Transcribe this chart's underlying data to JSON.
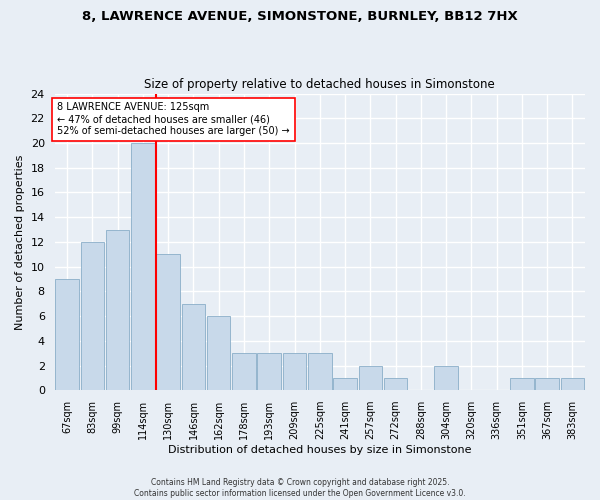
{
  "title_line1": "8, LAWRENCE AVENUE, SIMONSTONE, BURNLEY, BB12 7HX",
  "title_line2": "Size of property relative to detached houses in Simonstone",
  "xlabel": "Distribution of detached houses by size in Simonstone",
  "ylabel": "Number of detached properties",
  "categories": [
    "67sqm",
    "83sqm",
    "99sqm",
    "114sqm",
    "130sqm",
    "146sqm",
    "162sqm",
    "178sqm",
    "193sqm",
    "209sqm",
    "225sqm",
    "241sqm",
    "257sqm",
    "272sqm",
    "288sqm",
    "304sqm",
    "320sqm",
    "336sqm",
    "351sqm",
    "367sqm",
    "383sqm"
  ],
  "values": [
    9,
    12,
    13,
    20,
    11,
    7,
    6,
    3,
    3,
    3,
    3,
    1,
    2,
    1,
    0,
    2,
    0,
    0,
    1,
    1,
    1
  ],
  "bar_color": "#c8d9ea",
  "bar_edge_color": "#8aaec8",
  "vline_index": 4,
  "vline_color": "red",
  "annotation_title": "8 LAWRENCE AVENUE: 125sqm",
  "annotation_line1": "← 47% of detached houses are smaller (46)",
  "annotation_line2": "52% of semi-detached houses are larger (50) →",
  "annotation_box_color": "white",
  "annotation_box_edge": "red",
  "ylim": [
    0,
    24
  ],
  "yticks": [
    0,
    2,
    4,
    6,
    8,
    10,
    12,
    14,
    16,
    18,
    20,
    22,
    24
  ],
  "background_color": "#e8eef5",
  "grid_color": "white",
  "footer": "Contains HM Land Registry data © Crown copyright and database right 2025.\nContains public sector information licensed under the Open Government Licence v3.0."
}
